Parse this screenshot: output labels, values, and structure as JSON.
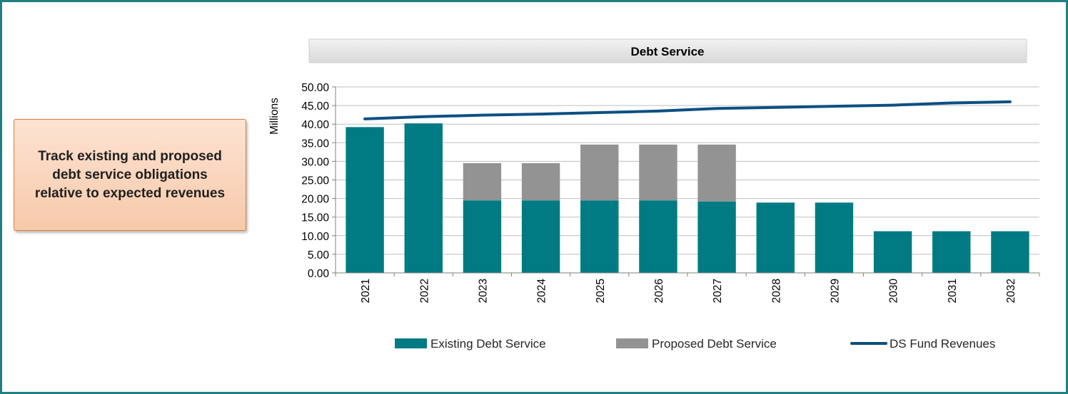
{
  "callout": {
    "text": "Track existing and proposed debt service obligations relative to expected revenues"
  },
  "chart_data": {
    "type": "bar",
    "title": "Debt Service",
    "xlabel": "",
    "ylabel": "Millions",
    "ylim": [
      0,
      50
    ],
    "y_ticks": [
      "0.00",
      "5.00",
      "10.00",
      "15.00",
      "20.00",
      "25.00",
      "30.00",
      "35.00",
      "40.00",
      "45.00",
      "50.00"
    ],
    "grid": true,
    "stacked": true,
    "legend_position": "bottom",
    "categories": [
      "2021",
      "2022",
      "2023",
      "2024",
      "2025",
      "2026",
      "2027",
      "2028",
      "2029",
      "2030",
      "2031",
      "2032"
    ],
    "series": [
      {
        "name": "Existing Debt Service",
        "kind": "bar",
        "color": "#007b83",
        "values": [
          39.2,
          40.2,
          19.5,
          19.5,
          19.5,
          19.5,
          19.2,
          18.9,
          18.9,
          11.2,
          11.2,
          11.2
        ]
      },
      {
        "name": "Proposed Debt Service",
        "kind": "bar",
        "color": "#939393",
        "values": [
          0,
          0,
          10.0,
          10.0,
          15.0,
          15.0,
          15.3,
          0,
          0,
          0,
          0,
          0
        ]
      },
      {
        "name": "DS Fund Revenues",
        "kind": "line",
        "color": "#0d4f82",
        "values": [
          41.4,
          42.0,
          42.4,
          42.7,
          43.1,
          43.5,
          44.2,
          44.5,
          44.8,
          45.1,
          45.7,
          46.0
        ]
      }
    ]
  },
  "colors": {
    "frame": "#1f7f83",
    "title_bar": "#e3e3e3",
    "callout_border": "#e07b3c",
    "grid": "#bfbfbf"
  }
}
